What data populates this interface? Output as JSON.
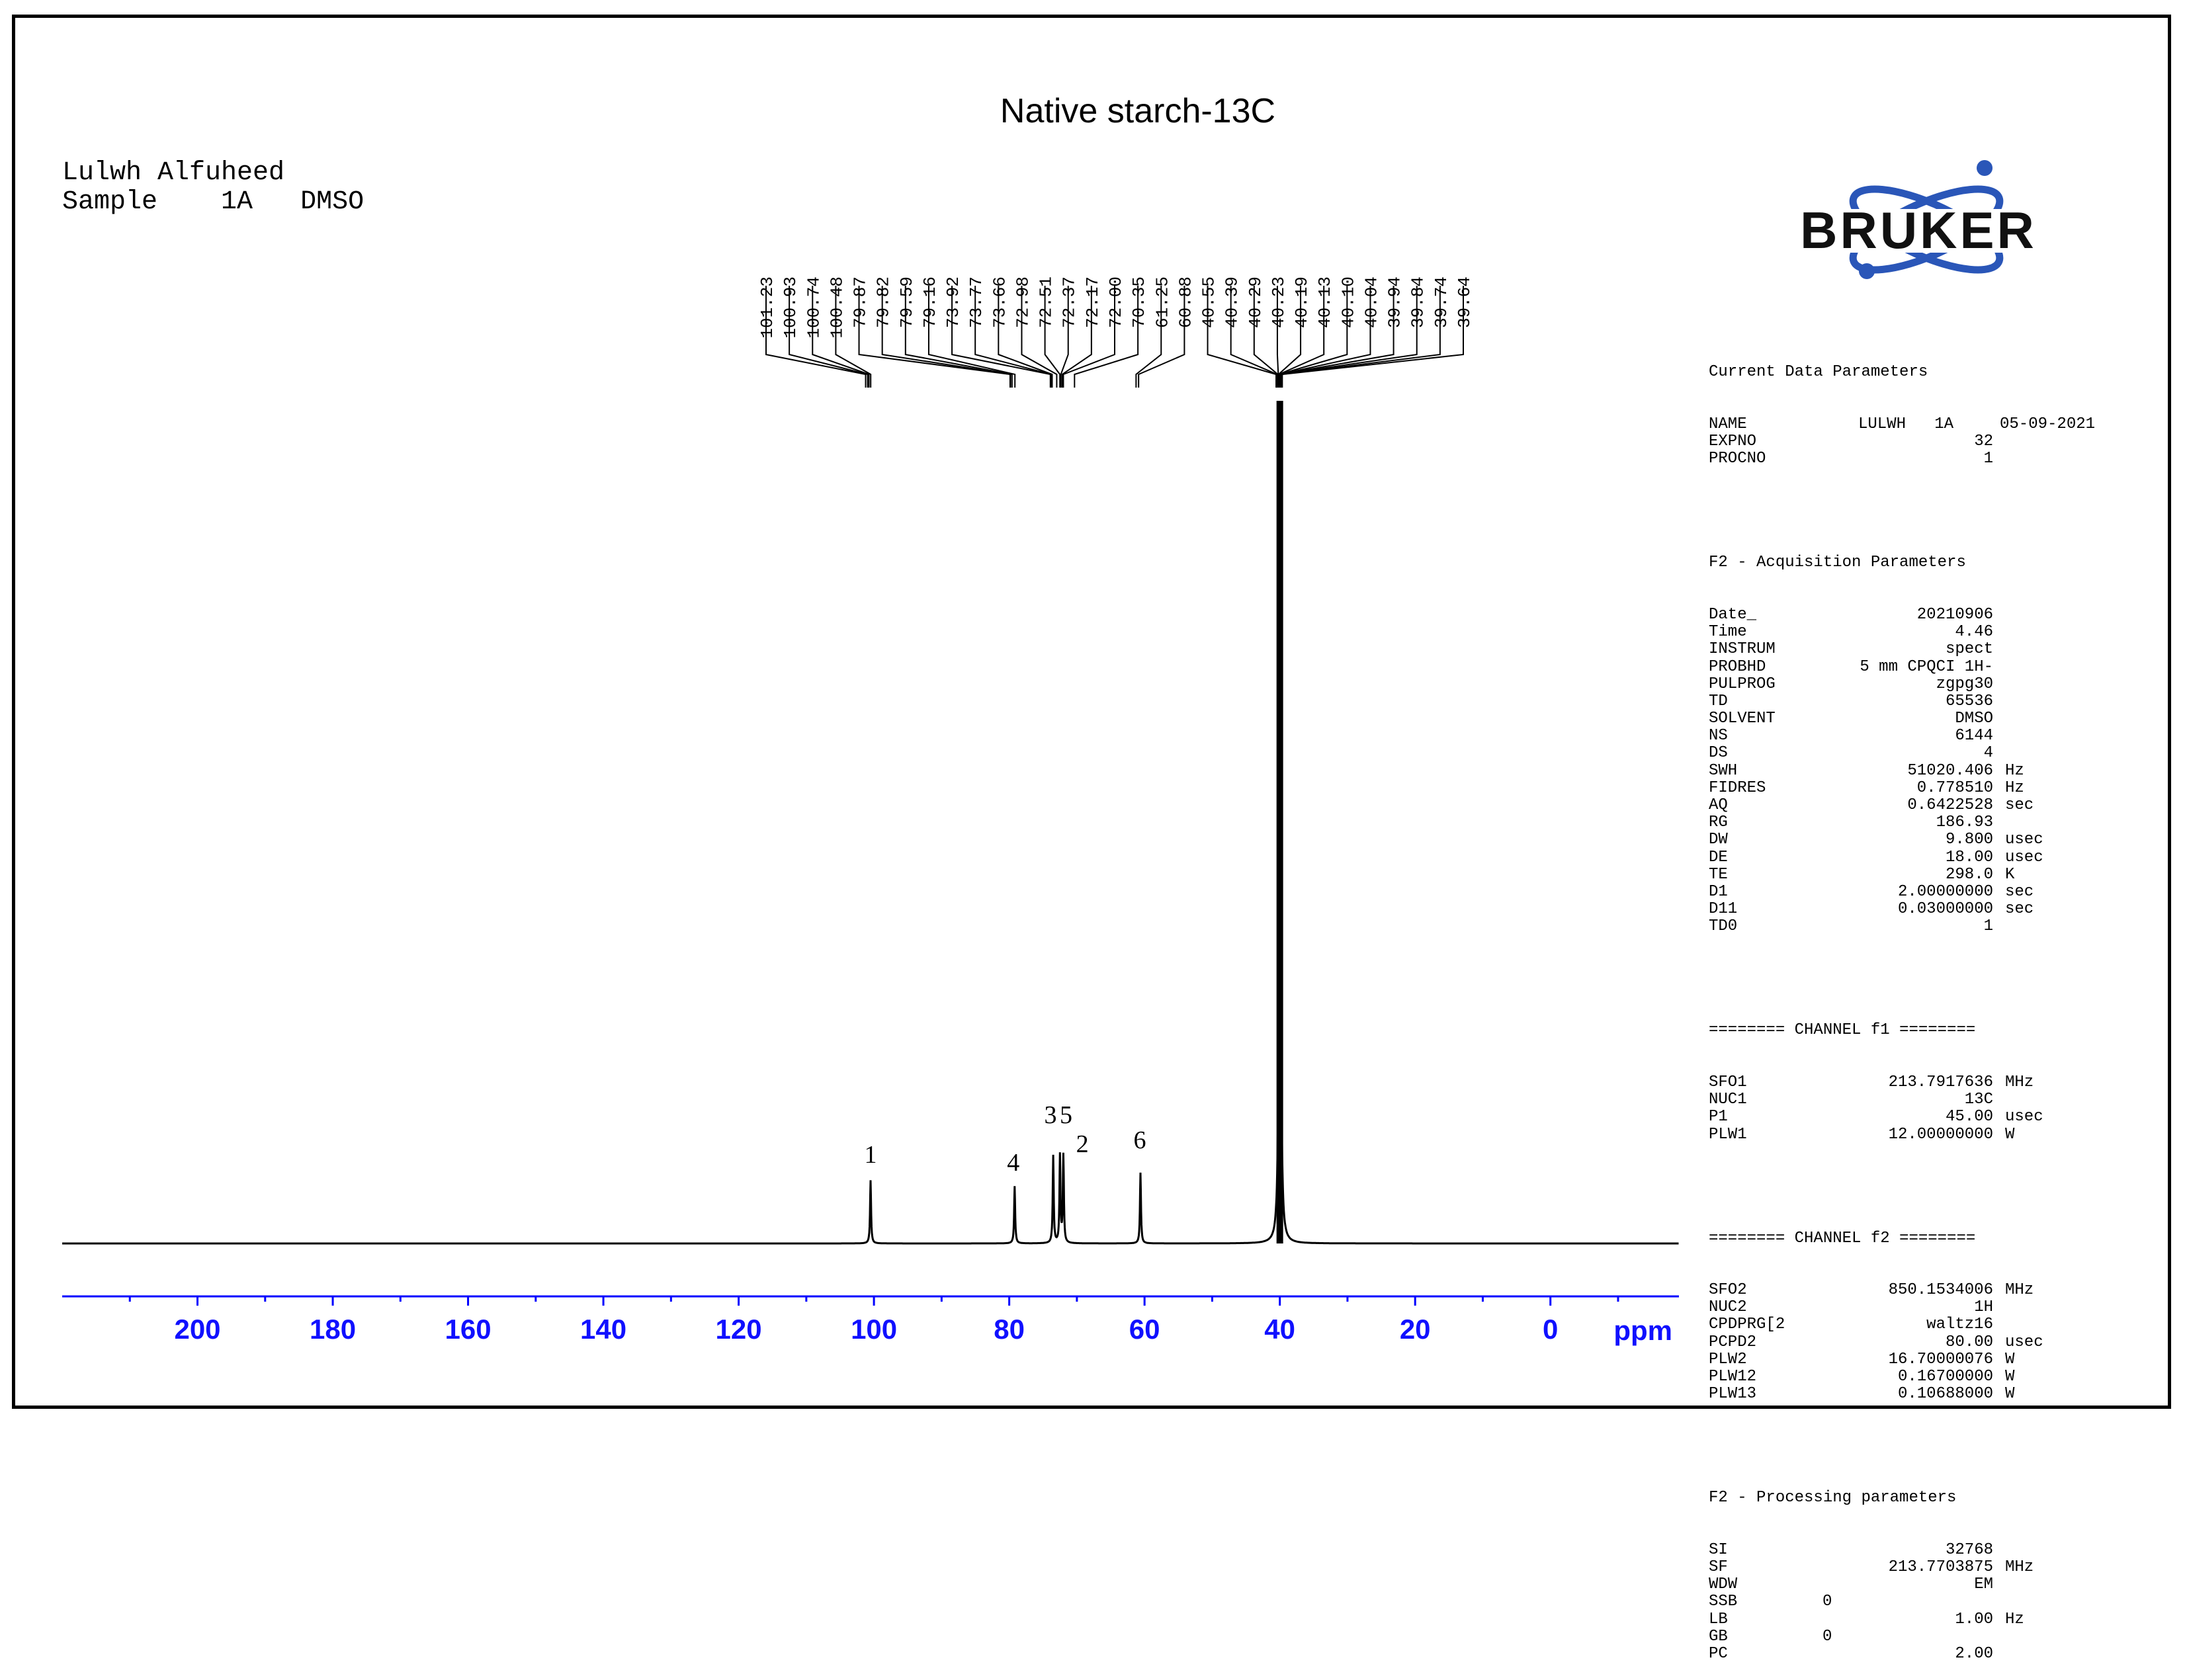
{
  "header": {
    "title": "Native starch-13C",
    "author": "Lulwh Alfuheed",
    "sample_label": "Sample",
    "sample_id": "1A",
    "sample_solvent": "DMSO"
  },
  "logo": {
    "text": "BRUKER",
    "icon": "bruker-atom-logo",
    "color": "#2a56b8"
  },
  "colors": {
    "axis": "#0000ff",
    "axis_labels": "#1010ff",
    "spectrum": "#000000"
  },
  "chart_data": {
    "type": "line",
    "title": "Native starch-13C",
    "xlabel": "ppm",
    "x_reversed": true,
    "xlim": [
      220,
      -19
    ],
    "x_ticks": [
      200,
      180,
      160,
      140,
      120,
      100,
      80,
      60,
      40,
      20,
      0
    ],
    "x_minor_step": 10,
    "grid": false,
    "series": [
      {
        "peaks": [
          {
            "ppm": 100.5,
            "height": 0.075,
            "label": "1"
          },
          {
            "ppm": 79.2,
            "height": 0.068,
            "label": "4"
          },
          {
            "ppm": 73.5,
            "height": 0.104,
            "label": "3"
          },
          {
            "ppm": 72.5,
            "height": 0.104,
            "label": "5"
          },
          {
            "ppm": 72.0,
            "height": 0.104,
            "label": "2"
          },
          {
            "ppm": 60.6,
            "height": 0.084,
            "label": "6"
          },
          {
            "ppm": 40.0,
            "height": 1.0,
            "label": ""
          }
        ]
      }
    ],
    "peak_labels": [
      "1",
      "4",
      "3",
      "5",
      "2",
      "6"
    ],
    "peak_list": [
      "101.23",
      "100.93",
      "100.74",
      "100.48",
      "79.87",
      "79.82",
      "79.59",
      "79.16",
      "73.92",
      "73.77",
      "73.66",
      "72.98",
      "72.51",
      "72.37",
      "72.17",
      "72.00",
      "70.35",
      "61.25",
      "60.88",
      "40.55",
      "40.39",
      "40.29",
      "40.23",
      "40.19",
      "40.13",
      "40.10",
      "40.04",
      "39.94",
      "39.84",
      "39.74",
      "39.64"
    ]
  },
  "parameters": {
    "current": {
      "heading": "Current Data Parameters",
      "rows": [
        {
          "k": "NAME",
          "v": "LULWH   1A",
          "u": "05-09-2021"
        },
        {
          "k": "EXPNO",
          "v": "32",
          "u": ""
        },
        {
          "k": "PROCNO",
          "v": "1",
          "u": ""
        }
      ]
    },
    "acquisition": {
      "heading": "F2 - Acquisition Parameters",
      "rows": [
        {
          "k": "Date_",
          "v": "20210906",
          "u": ""
        },
        {
          "k": "Time",
          "v": "4.46",
          "u": ""
        },
        {
          "k": "INSTRUM",
          "v": "spect",
          "u": ""
        },
        {
          "k": "PROBHD",
          "v": "5 mm CPQCI 1H-",
          "u": ""
        },
        {
          "k": "PULPROG",
          "v": "zgpg30",
          "u": ""
        },
        {
          "k": "TD",
          "v": "65536",
          "u": ""
        },
        {
          "k": "SOLVENT",
          "v": "DMSO",
          "u": ""
        },
        {
          "k": "NS",
          "v": "6144",
          "u": ""
        },
        {
          "k": "DS",
          "v": "4",
          "u": ""
        },
        {
          "k": "SWH",
          "v": "51020.406",
          "u": "Hz"
        },
        {
          "k": "FIDRES",
          "v": "0.778510",
          "u": "Hz"
        },
        {
          "k": "AQ",
          "v": "0.6422528",
          "u": "sec"
        },
        {
          "k": "RG",
          "v": "186.93",
          "u": ""
        },
        {
          "k": "DW",
          "v": "9.800",
          "u": "usec"
        },
        {
          "k": "DE",
          "v": "18.00",
          "u": "usec"
        },
        {
          "k": "TE",
          "v": "298.0",
          "u": "K"
        },
        {
          "k": "D1",
          "v": "2.00000000",
          "u": "sec"
        },
        {
          "k": "D11",
          "v": "0.03000000",
          "u": "sec"
        },
        {
          "k": "TD0",
          "v": "1",
          "u": ""
        }
      ]
    },
    "channel_f1": {
      "heading": "======== CHANNEL f1 ========",
      "rows": [
        {
          "k": "SFO1",
          "v": "213.7917636",
          "u": "MHz"
        },
        {
          "k": "NUC1",
          "v": "13C",
          "u": ""
        },
        {
          "k": "P1",
          "v": "45.00",
          "u": "usec"
        },
        {
          "k": "PLW1",
          "v": "12.00000000",
          "u": "W"
        }
      ]
    },
    "channel_f2": {
      "heading": "======== CHANNEL f2 ========",
      "rows": [
        {
          "k": "SFO2",
          "v": "850.1534006",
          "u": "MHz"
        },
        {
          "k": "NUC2",
          "v": "1H",
          "u": ""
        },
        {
          "k": "CPDPRG[2",
          "v": "waltz16",
          "u": ""
        },
        {
          "k": "PCPD2",
          "v": "80.00",
          "u": "usec"
        },
        {
          "k": "PLW2",
          "v": "16.70000076",
          "u": "W"
        },
        {
          "k": "PLW12",
          "v": "0.16700000",
          "u": "W"
        },
        {
          "k": "PLW13",
          "v": "0.10688000",
          "u": "W"
        }
      ]
    },
    "processing": {
      "heading": "F2 - Processing parameters",
      "rows": [
        {
          "k": "SI",
          "v": "32768",
          "u": ""
        },
        {
          "k": "SF",
          "v": "213.7703875",
          "u": "MHz"
        },
        {
          "k": "WDW",
          "v": "EM",
          "u": ""
        },
        {
          "k": "SSB",
          "v": "0",
          "u": "",
          "left": true
        },
        {
          "k": "LB",
          "v": "1.00",
          "u": "Hz"
        },
        {
          "k": "GB",
          "v": "0",
          "u": "",
          "left": true
        },
        {
          "k": "PC",
          "v": "2.00",
          "u": ""
        }
      ]
    }
  }
}
